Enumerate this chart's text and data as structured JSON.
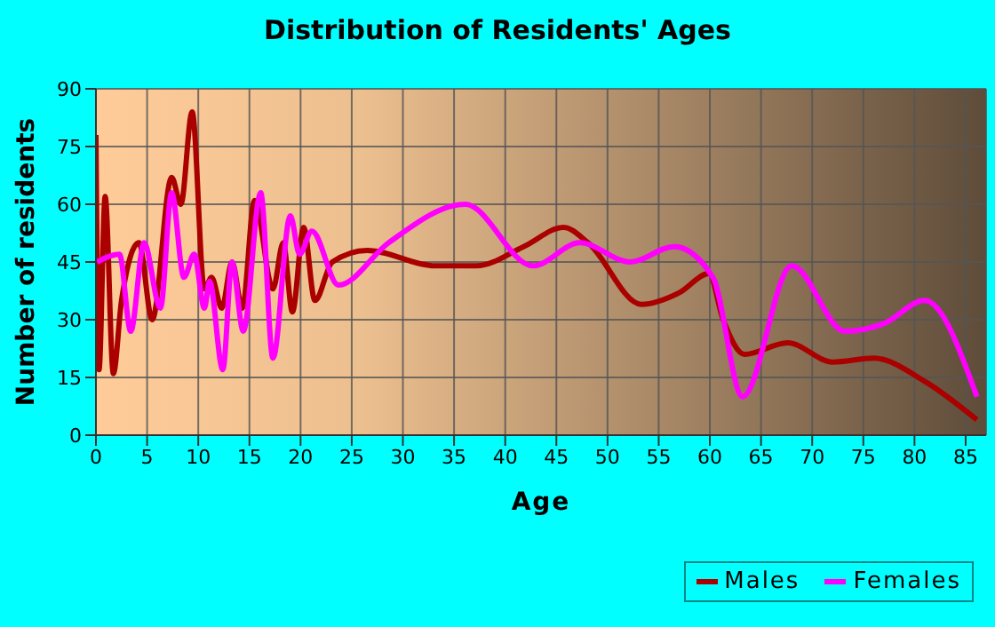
{
  "chart_data": {
    "type": "line",
    "title": "Distribution of Residents' Ages",
    "xlabel": "Age",
    "ylabel": "Number of residents",
    "xlim": [
      0,
      87
    ],
    "xticks": [
      0,
      5,
      10,
      15,
      20,
      25,
      30,
      35,
      40,
      45,
      50,
      55,
      60,
      65,
      70,
      75,
      80,
      85
    ],
    "ylim": [
      0,
      90
    ],
    "yticks": [
      0,
      15,
      30,
      45,
      60,
      75,
      90
    ],
    "grid": true,
    "legend": "bottom right",
    "marker": "none",
    "line_style": "solid",
    "series": [
      {
        "name": "Males",
        "color": "#aa0000",
        "x": [
          0,
          0.3,
          0.9,
          1.7,
          2.5,
          4.2,
          5.5,
          7.4,
          8.3,
          9.4,
          10.6,
          11.3,
          12.3,
          13.3,
          14.3,
          15.5,
          17.3,
          18.3,
          19.2,
          20.3,
          21.4,
          23.1,
          26.5,
          33.2,
          37.2,
          41.8,
          45.7,
          48.1,
          53.3,
          57,
          59.9,
          61.3,
          63.4,
          67.6,
          72,
          76,
          81,
          86.1
        ],
        "values": [
          78,
          17,
          62,
          16,
          35,
          50,
          30,
          67,
          60,
          84,
          38,
          41,
          33,
          45,
          33,
          61,
          38,
          50,
          32,
          54,
          35,
          45,
          48,
          44,
          44,
          49,
          54,
          50,
          34,
          37,
          42,
          30,
          21,
          24,
          19,
          20,
          14,
          4
        ]
      },
      {
        "name": "Females",
        "color": "#ff00ff",
        "x": [
          0.1,
          2.3,
          3.4,
          4.7,
          6.3,
          7.4,
          8.6,
          9.6,
          10.6,
          11.1,
          12.4,
          13.3,
          14.4,
          16.1,
          17.3,
          19,
          19.9,
          21.1,
          23.7,
          28.6,
          36.1,
          42.7,
          47.3,
          52.2,
          56.5,
          60.3,
          63.2,
          68,
          73.2,
          77,
          81,
          86.1
        ],
        "values": [
          45,
          47,
          27,
          50,
          33,
          63,
          41,
          47,
          33,
          40,
          17,
          45,
          27,
          63,
          20,
          57,
          47,
          53,
          39,
          50,
          60,
          44,
          50,
          45,
          49,
          41,
          10,
          44,
          27,
          29,
          35,
          10
        ]
      }
    ]
  }
}
